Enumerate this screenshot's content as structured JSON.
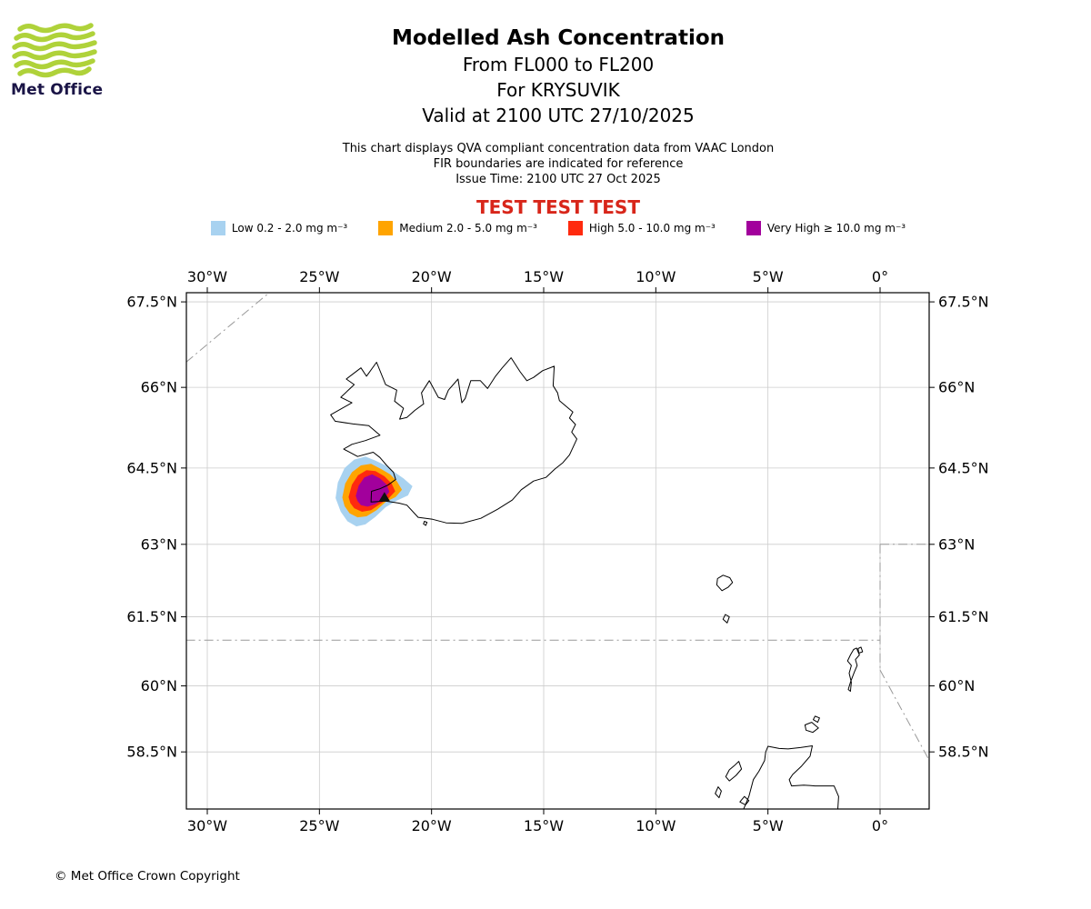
{
  "logo": {
    "text": "Met Office",
    "green": "#AFD23A",
    "navy": "#1A1446"
  },
  "header": {
    "title": "Modelled Ash Concentration",
    "subtitle1": "From FL000 to FL200",
    "subtitle2": "For KRYSUVIK",
    "subtitle3": "Valid at 2100 UTC 27/10/2025",
    "note1": "This chart displays QVA compliant concentration data from VAAC London",
    "note2": "FIR boundaries are indicated for reference",
    "note3": "Issue Time: 2100 UTC 27 Oct 2025",
    "test_banner": "TEST TEST TEST",
    "test_banner_color": "#D8261A"
  },
  "legend": {
    "items": [
      {
        "level": "Low",
        "label": "Low 0.2 - 2.0 mg m⁻³",
        "color": "#A8D2F0"
      },
      {
        "level": "Medium",
        "label": "Medium 2.0 - 5.0 mg m⁻³",
        "color": "#FFA400"
      },
      {
        "level": "High",
        "label": "High 5.0 - 10.0 mg m⁻³",
        "color": "#FF2A0E"
      },
      {
        "level": "Very High",
        "label": "Very High ≥ 10.0 mg m⁻³",
        "color": "#A2009C"
      }
    ]
  },
  "footer": {
    "copyright": "© Met Office Crown Copyright"
  },
  "chart_data": {
    "type": "map",
    "projection": "mercator",
    "lon_range": [
      -30.9,
      2.2
    ],
    "lat_range": [
      57.1,
      67.7
    ],
    "grid": true,
    "style": {
      "grid_color": "#CCCCCC",
      "fir_color": "#999999",
      "coast_color": "#000000",
      "volcano_color": "#111111"
    },
    "lon_ticks": [
      {
        "value": -30,
        "label": "30°W"
      },
      {
        "value": -25,
        "label": "25°W"
      },
      {
        "value": -20,
        "label": "20°W"
      },
      {
        "value": -15,
        "label": "15°W"
      },
      {
        "value": -10,
        "label": "10°W"
      },
      {
        "value": -5,
        "label": "5°W"
      },
      {
        "value": 0,
        "label": "0°"
      }
    ],
    "lat_ticks": [
      {
        "value": 67.5,
        "label": "67.5°N"
      },
      {
        "value": 66,
        "label": "66°N"
      },
      {
        "value": 64.5,
        "label": "64.5°N"
      },
      {
        "value": 63,
        "label": "63°N"
      },
      {
        "value": 61.5,
        "label": "61.5°N"
      },
      {
        "value": 60,
        "label": "60°N"
      },
      {
        "value": 58.5,
        "label": "58.5°N"
      }
    ],
    "volcano": {
      "name": "KRYSUVIK",
      "lon": -22.1,
      "lat": 63.93
    },
    "ash_contours": [
      {
        "level": "Low",
        "color": "#A8D2F0",
        "points": [
          [
            -24.28,
            63.92
          ],
          [
            -24.18,
            64.22
          ],
          [
            -23.88,
            64.5
          ],
          [
            -23.45,
            64.66
          ],
          [
            -22.95,
            64.72
          ],
          [
            -22.5,
            64.64
          ],
          [
            -22.1,
            64.56
          ],
          [
            -21.72,
            64.44
          ],
          [
            -21.25,
            64.3
          ],
          [
            -20.85,
            64.15
          ],
          [
            -21.05,
            63.97
          ],
          [
            -21.55,
            63.87
          ],
          [
            -22.05,
            63.74
          ],
          [
            -22.5,
            63.55
          ],
          [
            -22.95,
            63.4
          ],
          [
            -23.35,
            63.36
          ],
          [
            -23.75,
            63.46
          ],
          [
            -24.05,
            63.65
          ]
        ]
      },
      {
        "level": "Medium",
        "color": "#FFA400",
        "points": [
          [
            -23.98,
            63.93
          ],
          [
            -23.85,
            64.2
          ],
          [
            -23.55,
            64.42
          ],
          [
            -23.15,
            64.55
          ],
          [
            -22.7,
            64.58
          ],
          [
            -22.25,
            64.48
          ],
          [
            -21.85,
            64.38
          ],
          [
            -21.55,
            64.25
          ],
          [
            -21.32,
            64.08
          ],
          [
            -21.6,
            63.94
          ],
          [
            -22.05,
            63.84
          ],
          [
            -22.45,
            63.68
          ],
          [
            -22.9,
            63.56
          ],
          [
            -23.3,
            63.54
          ],
          [
            -23.65,
            63.62
          ],
          [
            -23.88,
            63.76
          ]
        ]
      },
      {
        "level": "High",
        "color": "#FF2A0E",
        "points": [
          [
            -23.7,
            63.94
          ],
          [
            -23.55,
            64.18
          ],
          [
            -23.28,
            64.36
          ],
          [
            -22.9,
            64.46
          ],
          [
            -22.5,
            64.44
          ],
          [
            -22.1,
            64.34
          ],
          [
            -21.78,
            64.2
          ],
          [
            -21.62,
            64.05
          ],
          [
            -21.9,
            63.92
          ],
          [
            -22.3,
            63.8
          ],
          [
            -22.7,
            63.68
          ],
          [
            -23.1,
            63.65
          ],
          [
            -23.45,
            63.72
          ],
          [
            -23.62,
            63.82
          ]
        ]
      },
      {
        "level": "Very High",
        "color": "#A2009C",
        "points": [
          [
            -23.38,
            63.96
          ],
          [
            -23.25,
            64.16
          ],
          [
            -23.0,
            64.32
          ],
          [
            -22.65,
            64.38
          ],
          [
            -22.3,
            64.3
          ],
          [
            -22.0,
            64.18
          ],
          [
            -21.88,
            64.04
          ],
          [
            -22.15,
            63.9
          ],
          [
            -22.5,
            63.8
          ],
          [
            -22.85,
            63.75
          ],
          [
            -23.15,
            63.78
          ],
          [
            -23.3,
            63.86
          ]
        ]
      }
    ],
    "fir_boundaries": [
      {
        "name": "reykjavik-nw",
        "points": [
          [
            -30.95,
            66.45
          ],
          [
            -27.1,
            67.7
          ]
        ]
      },
      {
        "name": "south-61n",
        "points": [
          [
            -30.95,
            61.0
          ],
          [
            0.0,
            61.0
          ]
        ]
      },
      {
        "name": "east-63n",
        "points": [
          [
            0.0,
            63.0
          ],
          [
            2.3,
            63.0
          ]
        ]
      },
      {
        "name": "meridian-0",
        "points": [
          [
            0.0,
            63.0
          ],
          [
            0.0,
            60.35
          ]
        ]
      },
      {
        "name": "southeast-diagonal",
        "points": [
          [
            0.0,
            60.35
          ],
          [
            2.3,
            58.2
          ]
        ]
      }
    ],
    "coastlines": [
      {
        "name": "iceland",
        "points": [
          [
            -22.7,
            63.84
          ],
          [
            -22.05,
            63.86
          ],
          [
            -21.45,
            63.82
          ],
          [
            -21.1,
            63.78
          ],
          [
            -20.6,
            63.54
          ],
          [
            -19.95,
            63.5
          ],
          [
            -19.35,
            63.43
          ],
          [
            -18.65,
            63.42
          ],
          [
            -17.8,
            63.52
          ],
          [
            -17.05,
            63.7
          ],
          [
            -16.4,
            63.88
          ],
          [
            -16.0,
            64.08
          ],
          [
            -15.45,
            64.25
          ],
          [
            -14.9,
            64.32
          ],
          [
            -14.5,
            64.48
          ],
          [
            -14.15,
            64.6
          ],
          [
            -13.85,
            64.75
          ],
          [
            -13.52,
            65.05
          ],
          [
            -13.75,
            65.18
          ],
          [
            -13.58,
            65.32
          ],
          [
            -13.85,
            65.44
          ],
          [
            -13.7,
            65.55
          ],
          [
            -14.3,
            65.76
          ],
          [
            -14.38,
            65.9
          ],
          [
            -14.58,
            66.03
          ],
          [
            -14.53,
            66.38
          ],
          [
            -15.05,
            66.3
          ],
          [
            -15.45,
            66.18
          ],
          [
            -15.75,
            66.12
          ],
          [
            -16.05,
            66.28
          ],
          [
            -16.45,
            66.53
          ],
          [
            -16.85,
            66.35
          ],
          [
            -17.15,
            66.2
          ],
          [
            -17.5,
            65.98
          ],
          [
            -17.82,
            66.12
          ],
          [
            -18.25,
            66.12
          ],
          [
            -18.5,
            65.8
          ],
          [
            -18.65,
            65.72
          ],
          [
            -18.82,
            66.15
          ],
          [
            -19.25,
            65.95
          ],
          [
            -19.42,
            65.78
          ],
          [
            -19.7,
            65.82
          ],
          [
            -20.1,
            66.12
          ],
          [
            -20.45,
            65.9
          ],
          [
            -20.35,
            65.7
          ],
          [
            -20.75,
            65.58
          ],
          [
            -21.1,
            65.45
          ],
          [
            -21.42,
            65.42
          ],
          [
            -21.25,
            65.62
          ],
          [
            -21.65,
            65.75
          ],
          [
            -21.55,
            65.95
          ],
          [
            -22.05,
            66.05
          ],
          [
            -22.45,
            66.45
          ],
          [
            -22.9,
            66.2
          ],
          [
            -23.15,
            66.35
          ],
          [
            -23.8,
            66.15
          ],
          [
            -23.45,
            66.05
          ],
          [
            -24.05,
            65.82
          ],
          [
            -23.55,
            65.72
          ],
          [
            -24.5,
            65.5
          ],
          [
            -24.3,
            65.38
          ],
          [
            -23.5,
            65.33
          ],
          [
            -22.8,
            65.3
          ],
          [
            -22.3,
            65.12
          ],
          [
            -22.95,
            65.02
          ],
          [
            -23.55,
            64.95
          ],
          [
            -23.92,
            64.86
          ],
          [
            -23.3,
            64.72
          ],
          [
            -22.6,
            64.8
          ],
          [
            -22.3,
            64.7
          ],
          [
            -22.0,
            64.55
          ],
          [
            -21.7,
            64.42
          ],
          [
            -21.6,
            64.28
          ],
          [
            -21.95,
            64.17
          ],
          [
            -22.3,
            64.1
          ],
          [
            -22.68,
            64.05
          ],
          [
            -22.7,
            63.84
          ]
        ]
      },
      {
        "name": "vestmannaeyjar",
        "points": [
          [
            -20.32,
            63.46
          ],
          [
            -20.2,
            63.44
          ],
          [
            -20.26,
            63.38
          ],
          [
            -20.36,
            63.41
          ]
        ]
      },
      {
        "name": "faroe-main",
        "points": [
          [
            -7.25,
            62.3
          ],
          [
            -7.0,
            62.37
          ],
          [
            -6.7,
            62.32
          ],
          [
            -6.58,
            62.22
          ],
          [
            -6.78,
            62.12
          ],
          [
            -7.05,
            62.05
          ],
          [
            -7.28,
            62.17
          ]
        ]
      },
      {
        "name": "faroe-south",
        "points": [
          [
            -6.9,
            61.55
          ],
          [
            -6.72,
            61.5
          ],
          [
            -6.82,
            61.37
          ],
          [
            -7.0,
            61.45
          ]
        ]
      },
      {
        "name": "shetland",
        "points": [
          [
            -1.05,
            60.83
          ],
          [
            -0.92,
            60.68
          ],
          [
            -1.1,
            60.58
          ],
          [
            -1.02,
            60.45
          ],
          [
            -1.15,
            60.3
          ],
          [
            -1.32,
            60.08
          ],
          [
            -1.42,
            59.92
          ],
          [
            -1.32,
            59.88
          ],
          [
            -1.28,
            60.08
          ],
          [
            -1.38,
            60.28
          ],
          [
            -1.28,
            60.45
          ],
          [
            -1.45,
            60.55
          ],
          [
            -1.32,
            60.68
          ],
          [
            -1.18,
            60.8
          ]
        ]
      },
      {
        "name": "shetland-north",
        "points": [
          [
            -0.85,
            60.85
          ],
          [
            -0.78,
            60.75
          ],
          [
            -0.95,
            60.72
          ],
          [
            -0.98,
            60.82
          ]
        ]
      },
      {
        "name": "orkney",
        "points": [
          [
            -3.35,
            59.12
          ],
          [
            -3.05,
            59.18
          ],
          [
            -2.75,
            59.05
          ],
          [
            -3.0,
            58.95
          ],
          [
            -3.3,
            59.0
          ]
        ]
      },
      {
        "name": "orkney-north",
        "points": [
          [
            -2.9,
            59.32
          ],
          [
            -2.7,
            59.28
          ],
          [
            -2.78,
            59.18
          ],
          [
            -2.98,
            59.24
          ]
        ]
      },
      {
        "name": "scotland",
        "points": [
          [
            -5.0,
            58.63
          ],
          [
            -4.5,
            58.58
          ],
          [
            -4.1,
            58.57
          ],
          [
            -3.55,
            58.6
          ],
          [
            -3.02,
            58.64
          ],
          [
            -3.12,
            58.4
          ],
          [
            -3.5,
            58.17
          ],
          [
            -3.9,
            57.97
          ],
          [
            -4.05,
            57.85
          ],
          [
            -3.95,
            57.7
          ],
          [
            -3.4,
            57.72
          ],
          [
            -2.9,
            57.7
          ],
          [
            -2.05,
            57.7
          ],
          [
            -1.85,
            57.45
          ],
          [
            -1.9,
            57.0
          ],
          [
            -6.2,
            57.0
          ],
          [
            -5.85,
            57.45
          ],
          [
            -5.65,
            57.85
          ],
          [
            -5.4,
            58.05
          ],
          [
            -5.15,
            58.3
          ],
          [
            -5.1,
            58.5
          ]
        ]
      },
      {
        "name": "hebrides-lewis",
        "points": [
          [
            -6.3,
            58.28
          ],
          [
            -6.18,
            58.1
          ],
          [
            -6.42,
            57.95
          ],
          [
            -6.72,
            57.82
          ],
          [
            -6.88,
            57.92
          ],
          [
            -6.72,
            58.08
          ],
          [
            -6.5,
            58.18
          ]
        ]
      },
      {
        "name": "hebrides-uist",
        "points": [
          [
            -7.22,
            57.68
          ],
          [
            -7.08,
            57.58
          ],
          [
            -7.18,
            57.42
          ],
          [
            -7.35,
            57.52
          ]
        ]
      },
      {
        "name": "skye",
        "points": [
          [
            -6.05,
            57.45
          ],
          [
            -5.85,
            57.35
          ],
          [
            -6.0,
            57.25
          ],
          [
            -6.25,
            57.32
          ]
        ]
      }
    ]
  }
}
